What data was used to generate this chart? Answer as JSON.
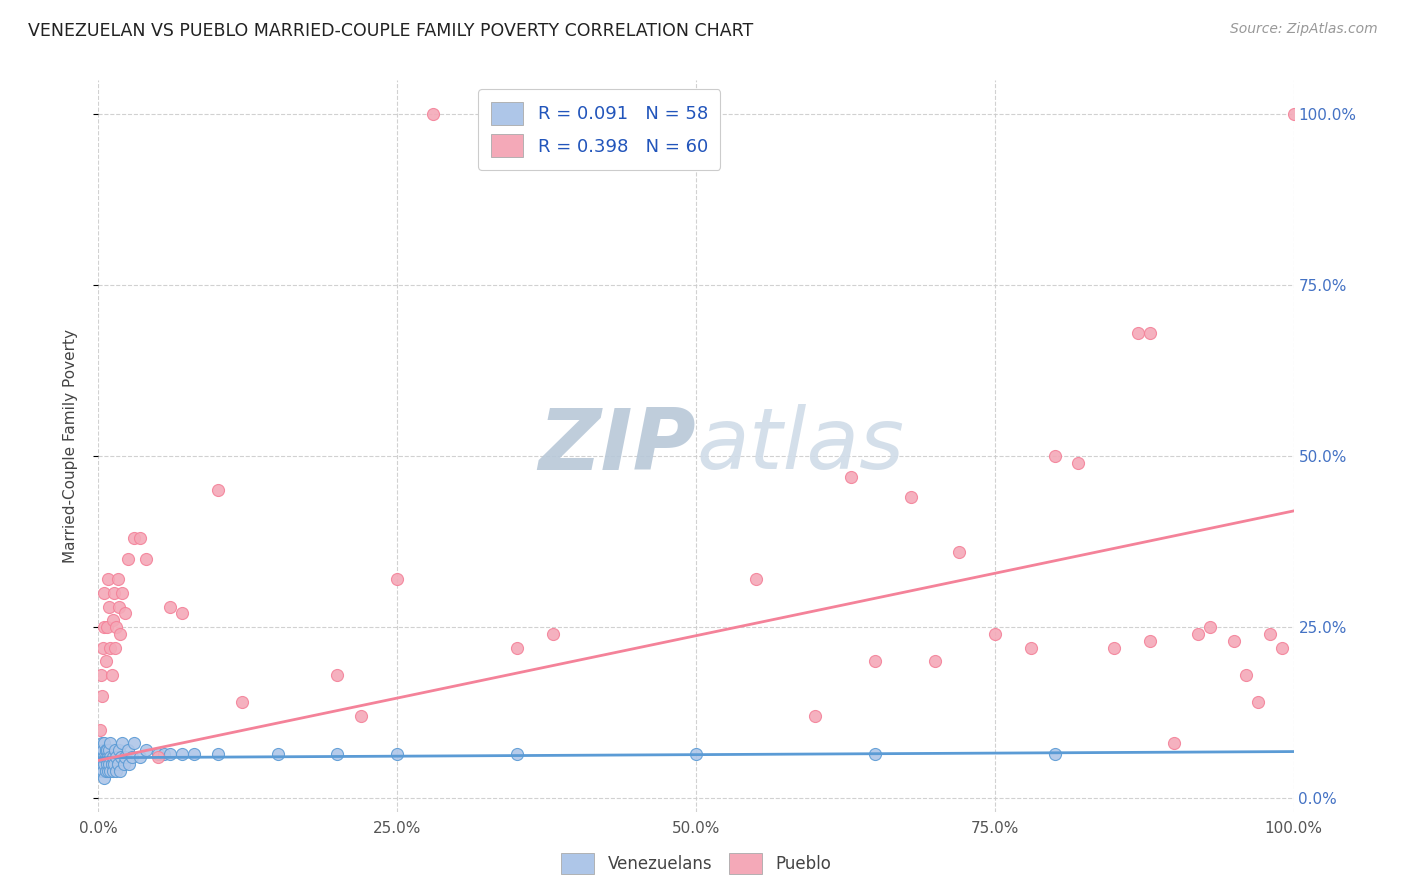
{
  "title": "VENEZUELAN VS PUEBLO MARRIED-COUPLE FAMILY POVERTY CORRELATION CHART",
  "source": "Source: ZipAtlas.com",
  "ylabel": "Married-Couple Family Poverty",
  "xlim": [
    0,
    1
  ],
  "ylim": [
    -0.02,
    1.05
  ],
  "color_venezuelan": "#aec6e8",
  "color_pueblo": "#f4a9b8",
  "color_line_venezuelan": "#5b9bd5",
  "color_line_pueblo": "#f48299",
  "background_color": "#ffffff",
  "watermark_color": "#ccd9e8",
  "venezuelan_x": [
    0.001,
    0.002,
    0.002,
    0.003,
    0.003,
    0.003,
    0.004,
    0.004,
    0.004,
    0.005,
    0.005,
    0.005,
    0.005,
    0.006,
    0.006,
    0.006,
    0.007,
    0.007,
    0.008,
    0.008,
    0.009,
    0.009,
    0.01,
    0.01,
    0.01,
    0.011,
    0.012,
    0.012,
    0.013,
    0.014,
    0.015,
    0.015,
    0.016,
    0.017,
    0.018,
    0.019,
    0.02,
    0.021,
    0.022,
    0.025,
    0.026,
    0.028,
    0.03,
    0.035,
    0.04,
    0.05,
    0.055,
    0.06,
    0.07,
    0.08,
    0.1,
    0.15,
    0.2,
    0.25,
    0.35,
    0.5,
    0.65,
    0.8
  ],
  "venezuelan_y": [
    0.06,
    0.04,
    0.07,
    0.05,
    0.06,
    0.08,
    0.04,
    0.06,
    0.07,
    0.05,
    0.03,
    0.06,
    0.08,
    0.04,
    0.06,
    0.07,
    0.05,
    0.07,
    0.04,
    0.06,
    0.05,
    0.07,
    0.04,
    0.06,
    0.08,
    0.05,
    0.04,
    0.06,
    0.05,
    0.07,
    0.04,
    0.06,
    0.05,
    0.07,
    0.04,
    0.06,
    0.08,
    0.05,
    0.06,
    0.07,
    0.05,
    0.06,
    0.08,
    0.06,
    0.07,
    0.065,
    0.065,
    0.065,
    0.065,
    0.065,
    0.065,
    0.065,
    0.065,
    0.065,
    0.065,
    0.065,
    0.065,
    0.065
  ],
  "pueblo_x": [
    0.001,
    0.002,
    0.003,
    0.004,
    0.005,
    0.005,
    0.006,
    0.007,
    0.008,
    0.009,
    0.01,
    0.011,
    0.012,
    0.013,
    0.014,
    0.015,
    0.016,
    0.017,
    0.018,
    0.02,
    0.022,
    0.025,
    0.03,
    0.035,
    0.04,
    0.05,
    0.06,
    0.07,
    0.1,
    0.12,
    0.2,
    0.22,
    0.25,
    0.35,
    0.38,
    0.55,
    0.6,
    0.63,
    0.65,
    0.68,
    0.7,
    0.72,
    0.75,
    0.78,
    0.8,
    0.82,
    0.85,
    0.87,
    0.88,
    0.9,
    0.92,
    0.93,
    0.95,
    0.96,
    0.97,
    0.98,
    0.99,
    1.0,
    0.28,
    0.88
  ],
  "pueblo_y": [
    0.1,
    0.18,
    0.15,
    0.22,
    0.25,
    0.3,
    0.2,
    0.25,
    0.32,
    0.28,
    0.22,
    0.18,
    0.26,
    0.3,
    0.22,
    0.25,
    0.32,
    0.28,
    0.24,
    0.3,
    0.27,
    0.35,
    0.38,
    0.38,
    0.35,
    0.06,
    0.28,
    0.27,
    0.45,
    0.14,
    0.18,
    0.12,
    0.32,
    0.22,
    0.24,
    0.32,
    0.12,
    0.47,
    0.2,
    0.44,
    0.2,
    0.36,
    0.24,
    0.22,
    0.5,
    0.49,
    0.22,
    0.68,
    0.23,
    0.08,
    0.24,
    0.25,
    0.23,
    0.18,
    0.14,
    0.24,
    0.22,
    1.0,
    1.0,
    0.68
  ],
  "ven_line_x": [
    0.0,
    1.0
  ],
  "ven_line_y": [
    0.059,
    0.068
  ],
  "pue_line_x": [
    0.0,
    1.0
  ],
  "pue_line_y": [
    0.055,
    0.42
  ]
}
